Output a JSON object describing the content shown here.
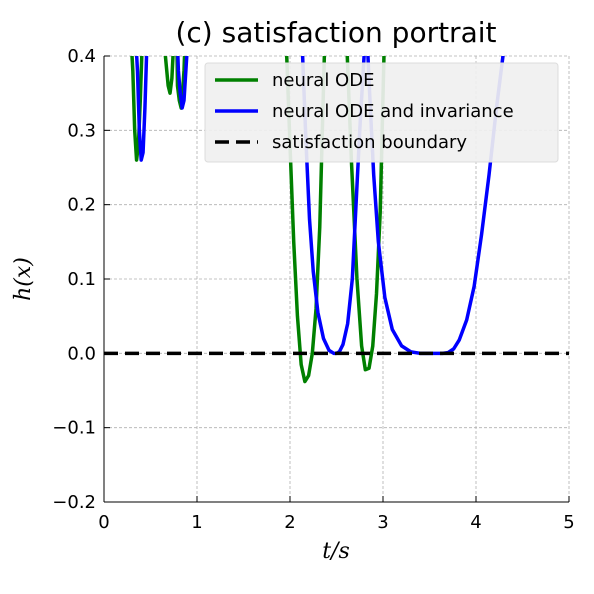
{
  "chart_data": {
    "type": "line",
    "title": "(c) satisfaction portrait",
    "xlabel": "t/s",
    "ylabel": "h(x)",
    "xlim": [
      0,
      5
    ],
    "ylim": [
      -0.2,
      0.4
    ],
    "xticks": [
      0,
      1,
      2,
      3,
      4,
      5
    ],
    "xtick_labels": [
      "0",
      "1",
      "2",
      "3",
      "4",
      "5"
    ],
    "yticks": [
      -0.2,
      -0.1,
      0.0,
      0.1,
      0.2,
      0.3,
      0.4
    ],
    "ytick_labels": [
      "−0.2",
      "−0.1",
      "0.0",
      "0.1",
      "0.2",
      "0.3",
      "0.4"
    ],
    "grid": true,
    "legend_position": "top-right",
    "series": [
      {
        "name": "neural ODE",
        "color": "#008000",
        "style": "solid",
        "x": [
          0.28,
          0.31,
          0.33,
          0.35,
          0.37,
          0.39,
          0.42,
          0.62,
          0.66,
          0.69,
          0.71,
          0.73,
          0.75,
          0.78,
          0.79,
          0.81,
          0.83,
          0.84,
          0.86,
          0.88,
          1.95,
          2.0,
          2.04,
          2.08,
          2.12,
          2.16,
          2.2,
          2.24,
          2.28,
          2.32,
          2.38,
          2.6,
          2.66,
          2.72,
          2.77,
          2.81,
          2.85,
          2.89,
          2.93,
          2.97,
          3.02
        ],
        "y": [
          0.45,
          0.38,
          0.3,
          0.26,
          0.28,
          0.34,
          0.45,
          0.45,
          0.4,
          0.36,
          0.35,
          0.37,
          0.42,
          0.45,
          0.36,
          0.34,
          0.33,
          0.34,
          0.38,
          0.45,
          0.45,
          0.28,
          0.15,
          0.05,
          -0.015,
          -0.038,
          -0.03,
          0.0,
          0.06,
          0.17,
          0.45,
          0.45,
          0.26,
          0.1,
          0.01,
          -0.022,
          -0.02,
          0.01,
          0.08,
          0.19,
          0.45
        ]
      },
      {
        "name": "neural ODE and invariance",
        "color": "#0000ff",
        "style": "solid",
        "x": [
          0.33,
          0.36,
          0.38,
          0.4,
          0.42,
          0.44,
          0.47,
          0.78,
          0.8,
          0.82,
          0.84,
          0.86,
          0.88,
          0.9,
          0.93,
          2.12,
          2.17,
          2.21,
          2.25,
          2.3,
          2.36,
          2.42,
          2.47,
          2.5,
          2.53,
          2.57,
          2.62,
          2.67,
          2.75,
          2.82,
          2.86,
          2.9,
          2.95,
          3.02,
          3.1,
          3.2,
          3.3,
          3.4,
          3.5,
          3.58,
          3.64,
          3.7,
          3.76,
          3.82,
          3.9,
          3.98,
          4.06,
          4.14,
          4.22,
          4.29,
          4.34
        ],
        "y": [
          0.45,
          0.38,
          0.3,
          0.26,
          0.27,
          0.33,
          0.45,
          0.45,
          0.38,
          0.35,
          0.33,
          0.34,
          0.38,
          0.42,
          0.45,
          0.45,
          0.29,
          0.18,
          0.11,
          0.055,
          0.02,
          0.004,
          0.0,
          0.0,
          0.002,
          0.012,
          0.04,
          0.1,
          0.3,
          0.45,
          0.34,
          0.24,
          0.15,
          0.075,
          0.032,
          0.01,
          0.002,
          0.0,
          0.0,
          0.0,
          0.0,
          0.001,
          0.006,
          0.018,
          0.045,
          0.09,
          0.16,
          0.24,
          0.33,
          0.4,
          0.45
        ]
      },
      {
        "name": "satisfaction boundary",
        "color": "#000000",
        "style": "dashed",
        "x": [
          0,
          5
        ],
        "y": [
          0,
          0
        ]
      }
    ]
  }
}
